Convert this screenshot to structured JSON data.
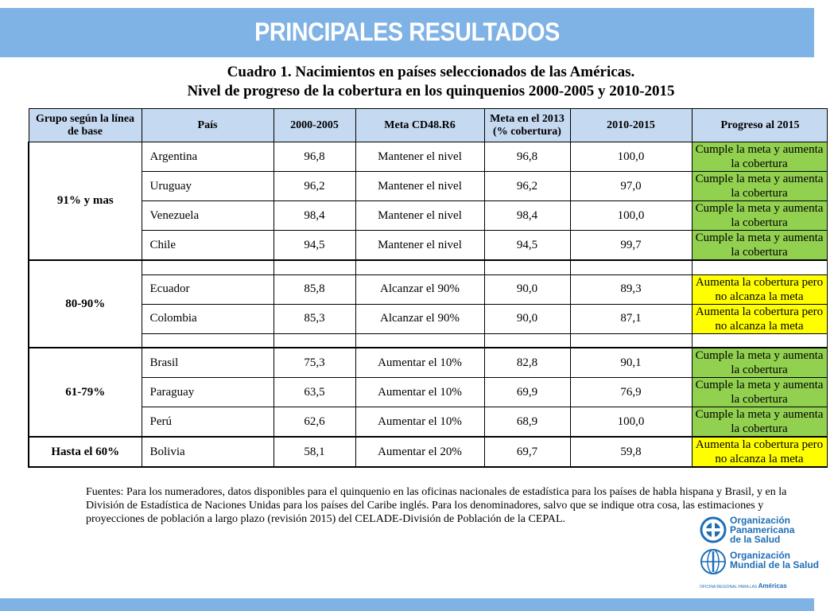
{
  "slide": {
    "title": "PRINCIPALES RESULTADOS",
    "heading_line1": "Cuadro 1. Nacimientos en países seleccionados de las Américas.",
    "heading_line2": "Nivel de progreso de la cobertura en los quinquenios 2000-2005 y 2010-2015"
  },
  "table": {
    "headers": {
      "group": "Grupo según la línea de base",
      "country": "País",
      "y2000": "2000-2005",
      "meta": "Meta CD48.R6",
      "meta2013": "Meta en el 2013 (% cobertura)",
      "y2010": "2010-2015",
      "progress": "Progreso al 2015"
    },
    "groups": {
      "g1": "91% y mas",
      "g2": "80-90%",
      "g3": "61-79%",
      "g4": "Hasta el 60%"
    },
    "rows": [
      {
        "country": "Argentina",
        "y2000": "96,8",
        "meta": "Mantener el nivel",
        "meta2013": "96,8",
        "y2010": "100,0",
        "progress": "Cumple la meta y aumenta la cobertura",
        "status_color": "#92d050"
      },
      {
        "country": "Uruguay",
        "y2000": "96,2",
        "meta": "Mantener el nivel",
        "meta2013": "96,2",
        "y2010": "97,0",
        "progress": "Cumple la meta y aumenta la cobertura",
        "status_color": "#92d050"
      },
      {
        "country": "Venezuela",
        "y2000": "98,4",
        "meta": "Mantener el nivel",
        "meta2013": "98,4",
        "y2010": "100,0",
        "progress": "Cumple la meta y aumenta la cobertura",
        "status_color": "#92d050"
      },
      {
        "country": "Chile",
        "y2000": "94,5",
        "meta": "Mantener el nivel",
        "meta2013": "94,5",
        "y2010": "99,7",
        "progress": "Cumple la meta y aumenta la cobertura",
        "status_color": "#92d050"
      },
      {
        "country": "Ecuador",
        "y2000": "85,8",
        "meta": "Alcanzar el 90%",
        "meta2013": "90,0",
        "y2010": "89,3",
        "progress": "Aumenta la cobertura pero no alcanza la meta",
        "status_color": "#ffff00"
      },
      {
        "country": "Colombia",
        "y2000": "85,3",
        "meta": "Alcanzar el 90%",
        "meta2013": "90,0",
        "y2010": "87,1",
        "progress": "Aumenta la cobertura pero no alcanza la meta",
        "status_color": "#ffff00"
      },
      {
        "country": "Brasil",
        "y2000": "75,3",
        "meta": "Aumentar el 10%",
        "meta2013": "82,8",
        "y2010": "90,1",
        "progress": "Cumple la meta y aumenta la cobertura",
        "status_color": "#92d050"
      },
      {
        "country": "Paraguay",
        "y2000": "63,5",
        "meta": "Aumentar el 10%",
        "meta2013": "69,9",
        "y2010": "76,9",
        "progress": "Cumple la meta y aumenta la cobertura",
        "status_color": "#92d050"
      },
      {
        "country": "Perú",
        "y2000": "62,6",
        "meta": "Aumentar el 10%",
        "meta2013": "68,9",
        "y2010": "100,0",
        "progress": "Cumple la meta y aumenta la cobertura",
        "status_color": "#92d050"
      },
      {
        "country": "Bolivia",
        "y2000": "58,1",
        "meta": "Aumentar el 20%",
        "meta2013": "69,7",
        "y2010": "59,8",
        "progress": "Aumenta la cobertura pero no alcanza la meta",
        "status_color": "#ffff00"
      }
    ]
  },
  "sources": "Fuentes: Para los numeradores, datos disponibles para el quinquenio en las oficinas nacionales de estadística para los países de habla hispana y Brasil, y en la División de Estadística de Naciones Unidas para los países del Caribe inglés. Para los denominadores, salvo que se indique otra cosa, las estimaciones y proyecciones de población a largo plazo (revisión 2015) del CELADE-División de Población de la CEPAL.",
  "logos": {
    "paho_line1": "Organización",
    "paho_line2": "Panamericana",
    "paho_line3": "de la Salud",
    "who_line1": "Organización",
    "who_line2": "Mundial de la Salud",
    "who_sub": "OFICINA REGIONAL PARA LAS",
    "who_sub_bold": "Américas",
    "colors": {
      "banner": "#7fb2e5",
      "header": "#c5d9f1",
      "green": "#92d050",
      "yellow": "#ffff00",
      "logo": "#1f6eb5"
    }
  }
}
